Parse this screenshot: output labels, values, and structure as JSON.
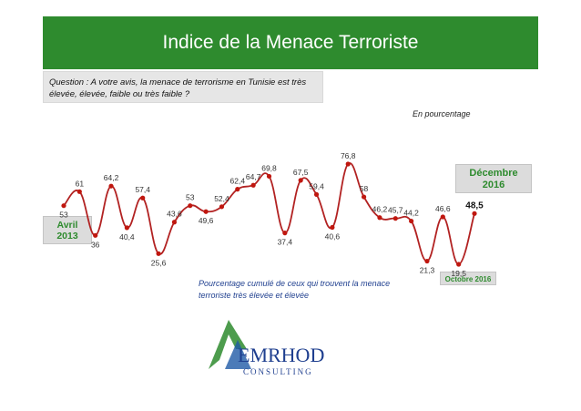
{
  "title": "Indice de la Menace Terroriste",
  "question": "Question : A votre avis, la menace de terrorisme en Tunisie est très élevée, élevée, faible ou très faible ?",
  "unit_note": "En pourcentage",
  "start_label": {
    "line1": "Avril",
    "line2": "2013"
  },
  "end_label": {
    "line1": "Décembre",
    "line2": "2016"
  },
  "oct_label": "Octobre 2016",
  "caption": "Pourcentage cumulé de ceux qui trouvent la menace terroriste très élevée et élevée",
  "logo": {
    "name": "EMRHOD",
    "sub": "CONSULTING"
  },
  "colors": {
    "title_bg": "#2e8b2e",
    "line": "#b22222",
    "point": "#c0170f",
    "badge_text": "#2e8b2e"
  },
  "chart_data": {
    "type": "line",
    "series": [
      {
        "values": [
          53,
          61,
          36,
          64.2,
          40.4,
          57.4,
          25.6,
          43.6,
          53,
          49.6,
          52.4,
          62.4,
          64.7,
          69.8,
          37.4,
          67.5,
          59.4,
          40.6,
          76.8,
          58,
          46.2,
          45.7,
          44.2,
          21.3,
          46.6,
          19.5,
          48.5
        ],
        "labels": [
          "53",
          "61",
          "36",
          "64,2",
          "40,4",
          "57,4",
          "25,6",
          "43,6",
          "53",
          "49,6",
          "52,4",
          "62,4",
          "64,7",
          "69,8",
          "37,4",
          "67,5",
          "59,4",
          "40,6",
          "76,8",
          "58",
          "46,2",
          "45,7",
          "44,2",
          "21,3",
          "46,6",
          "19,5",
          "48,5"
        ]
      }
    ],
    "x_start": "Avril 2013",
    "x_end": "Décembre 2016",
    "grid": false,
    "legend": "none"
  }
}
